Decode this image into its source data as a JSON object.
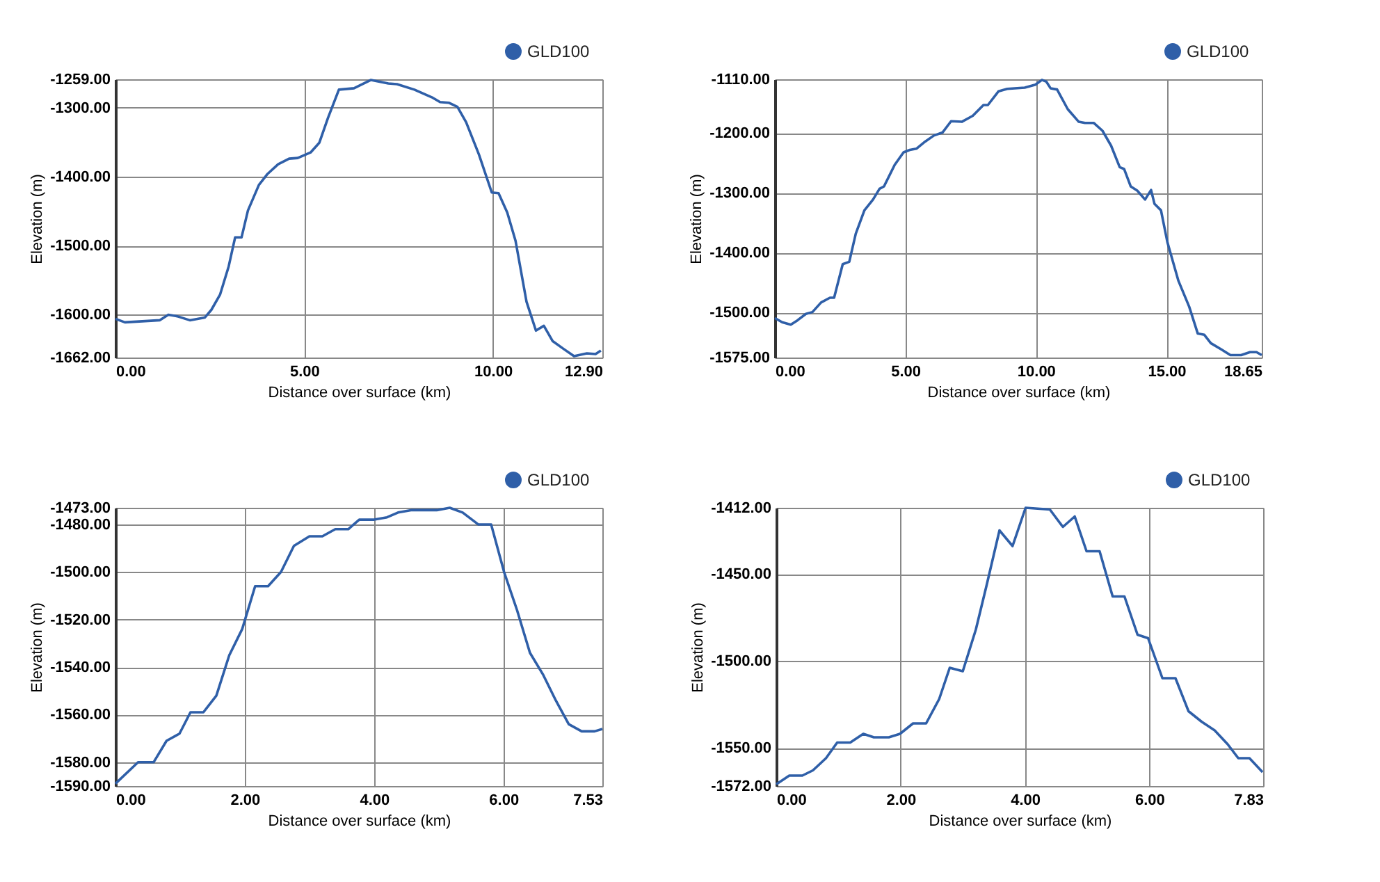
{
  "chart_data": [
    {
      "type": "line",
      "xlabel": "Distance over surface (km)",
      "ylabel": "Elevation (m)",
      "legend": "top right",
      "grid": true,
      "marker": "none",
      "line_style": "solid",
      "xlim": [
        0,
        12.9
      ],
      "ylim": [
        -1662,
        -1259
      ],
      "xticks": [
        {
          "value": 0,
          "label": "0.00"
        },
        {
          "value": 5,
          "label": "5.00"
        },
        {
          "value": 10,
          "label": "10.00"
        },
        {
          "value": 12.9,
          "label": "12.90"
        }
      ],
      "yticks": [
        {
          "value": -1662,
          "label": "-1662.00"
        },
        {
          "value": -1600,
          "label": "-1600.00"
        },
        {
          "value": -1500,
          "label": "-1500.00"
        },
        {
          "value": -1400,
          "label": "-1400.00"
        },
        {
          "value": -1300,
          "label": "-1300.00"
        },
        {
          "value": -1259,
          "label": "-1259.00"
        }
      ],
      "series": [
        {
          "name": "GLD100",
          "color": "#2f5fa8",
          "x": [
            0,
            0.25,
            1.17,
            1.4,
            1.62,
            1.97,
            2.37,
            2.54,
            2.77,
            3.0,
            3.17,
            3.34,
            3.51,
            3.8,
            4.03,
            4.31,
            4.6,
            4.83,
            5.17,
            5.4,
            5.63,
            5.92,
            6.32,
            6.77,
            7.23,
            7.46,
            7.92,
            8.38,
            8.6,
            8.83,
            9.06,
            9.29,
            9.63,
            9.97,
            10.15,
            10.38,
            10.6,
            10.89,
            11.14,
            11.35,
            11.58,
            11.86,
            12.15,
            12.49,
            12.72,
            12.86
          ],
          "values": [
            -1606,
            -1611,
            -1608,
            -1600,
            -1602,
            -1608,
            -1604,
            -1593,
            -1571,
            -1530,
            -1488,
            -1488,
            -1449,
            -1412,
            -1396,
            -1382,
            -1374,
            -1373,
            -1365,
            -1351,
            -1315,
            -1274,
            -1272,
            -1260,
            -1265,
            -1266,
            -1274,
            -1285,
            -1292,
            -1293,
            -1299,
            -1321,
            -1368,
            -1423,
            -1424,
            -1452,
            -1493,
            -1581,
            -1623,
            -1616,
            -1638,
            -1649,
            -1660,
            -1656,
            -1657,
            -1652
          ]
        }
      ]
    },
    {
      "type": "line",
      "xlabel": "Distance over surface (km)",
      "ylabel": "Elevation (m)",
      "legend": "top right",
      "grid": true,
      "marker": "none",
      "line_style": "solid",
      "xlim": [
        0,
        18.65
      ],
      "ylim": [
        -1575,
        -1110
      ],
      "xticks": [
        {
          "value": 0,
          "label": "0.00"
        },
        {
          "value": 5,
          "label": "5.00"
        },
        {
          "value": 10,
          "label": "10.00"
        },
        {
          "value": 15,
          "label": "15.00"
        },
        {
          "value": 18.65,
          "label": "18.65"
        }
      ],
      "yticks": [
        {
          "value": -1575,
          "label": "-1575.00"
        },
        {
          "value": -1500,
          "label": "-1500.00"
        },
        {
          "value": -1400,
          "label": "-1400.00"
        },
        {
          "value": -1300,
          "label": "-1300.00"
        },
        {
          "value": -1200,
          "label": "-1200.00"
        },
        {
          "value": -1110,
          "label": "-1110.00"
        }
      ],
      "series": [
        {
          "name": "GLD100",
          "color": "#2f5fa8",
          "x": [
            0,
            0.28,
            0.61,
            0.86,
            1.19,
            1.44,
            1.77,
            2.11,
            2.27,
            2.6,
            2.85,
            3.1,
            3.43,
            3.76,
            4.01,
            4.18,
            4.59,
            4.93,
            5.17,
            5.42,
            5.76,
            6.09,
            6.42,
            6.75,
            7.16,
            7.58,
            7.99,
            8.16,
            8.57,
            8.9,
            9.57,
            9.98,
            10.23,
            10.4,
            10.56,
            10.81,
            11.22,
            11.64,
            11.88,
            12.22,
            12.55,
            12.88,
            13.21,
            13.38,
            13.63,
            13.88,
            14.18,
            14.41,
            14.54,
            14.79,
            15.04,
            15.46,
            15.87,
            16.2,
            16.45,
            16.7,
            17.12,
            17.45,
            17.86,
            18.2,
            18.45,
            18.65
          ],
          "values": [
            -1509,
            -1516,
            -1520,
            -1513,
            -1502,
            -1499,
            -1483,
            -1475,
            -1475,
            -1419,
            -1415,
            -1368,
            -1329,
            -1311,
            -1293,
            -1289,
            -1253,
            -1232,
            -1228,
            -1226,
            -1214,
            -1204,
            -1199,
            -1180,
            -1181,
            -1171,
            -1153,
            -1153,
            -1130,
            -1126,
            -1124,
            -1119,
            -1111,
            -1114,
            -1125,
            -1127,
            -1160,
            -1181,
            -1183,
            -1183,
            -1196,
            -1221,
            -1257,
            -1260,
            -1289,
            -1296,
            -1311,
            -1295,
            -1318,
            -1329,
            -1383,
            -1447,
            -1490,
            -1535,
            -1537,
            -1551,
            -1562,
            -1571,
            -1571,
            -1566,
            -1566,
            -1571
          ]
        }
      ]
    },
    {
      "type": "line",
      "xlabel": "Distance over surface (km)",
      "ylabel": "Elevation (m)",
      "legend": "top right",
      "grid": true,
      "marker": "none",
      "line_style": "solid",
      "xlim": [
        0,
        7.53
      ],
      "ylim": [
        -1590,
        -1473
      ],
      "xticks": [
        {
          "value": 0,
          "label": "0.00"
        },
        {
          "value": 2,
          "label": "2.00"
        },
        {
          "value": 4,
          "label": "4.00"
        },
        {
          "value": 6,
          "label": "6.00"
        },
        {
          "value": 7.53,
          "label": "7.53"
        }
      ],
      "yticks": [
        {
          "value": -1590,
          "label": "-1590.00"
        },
        {
          "value": -1580,
          "label": "-1580.00"
        },
        {
          "value": -1560,
          "label": "-1560.00"
        },
        {
          "value": -1540,
          "label": "-1540.00"
        },
        {
          "value": -1520,
          "label": "-1520.00"
        },
        {
          "value": -1500,
          "label": "-1500.00"
        },
        {
          "value": -1480,
          "label": "-1480.00"
        },
        {
          "value": -1473,
          "label": "-1473.00"
        }
      ],
      "series": [
        {
          "name": "GLD100",
          "color": "#2f5fa8",
          "x": [
            0,
            0.35,
            0.59,
            0.79,
            0.99,
            1.16,
            1.36,
            1.56,
            1.76,
            1.96,
            2.16,
            2.36,
            2.56,
            2.76,
            3.0,
            3.2,
            3.4,
            3.6,
            3.77,
            4.0,
            4.2,
            4.37,
            4.57,
            4.97,
            5.17,
            5.37,
            5.61,
            5.81,
            6.01,
            6.21,
            6.41,
            6.61,
            6.81,
            7.01,
            7.21,
            7.41,
            7.53
          ],
          "values": [
            -1589,
            -1580,
            -1580,
            -1571,
            -1568,
            -1559,
            -1559,
            -1552,
            -1535,
            -1524,
            -1506,
            -1506,
            -1500,
            -1489,
            -1485,
            -1485,
            -1482,
            -1482,
            -1478,
            -1478,
            -1477,
            -1475,
            -1474,
            -1474,
            -1473,
            -1475,
            -1480,
            -1480,
            -1500,
            -1516,
            -1534,
            -1543,
            -1554,
            -1564,
            -1567,
            -1567,
            -1566
          ]
        }
      ]
    },
    {
      "type": "line",
      "xlabel": "Distance over surface (km)",
      "ylabel": "Elevation (m)",
      "legend": "top right",
      "grid": true,
      "marker": "none",
      "line_style": "solid",
      "xlim": [
        0,
        7.83
      ],
      "ylim": [
        -1572,
        -1412
      ],
      "xticks": [
        {
          "value": 0,
          "label": "0.00"
        },
        {
          "value": 2,
          "label": "2.00"
        },
        {
          "value": 4,
          "label": "4.00"
        },
        {
          "value": 6,
          "label": "6.00"
        },
        {
          "value": 7.83,
          "label": "7.83"
        }
      ],
      "yticks": [
        {
          "value": -1572,
          "label": "-1572.00"
        },
        {
          "value": -1550,
          "label": "-1550.00"
        },
        {
          "value": -1500,
          "label": "-1500.00"
        },
        {
          "value": -1450,
          "label": "-1450.00"
        },
        {
          "value": -1412,
          "label": "-1412.00"
        }
      ],
      "series": [
        {
          "name": "GLD100",
          "color": "#2f5fa8",
          "x": [
            0,
            0.21,
            0.42,
            0.59,
            0.8,
            0.98,
            1.19,
            1.4,
            1.57,
            1.81,
            1.99,
            2.2,
            2.41,
            2.62,
            2.79,
            3.0,
            3.21,
            3.38,
            3.59,
            3.8,
            4.01,
            4.4,
            4.61,
            4.8,
            4.99,
            5.2,
            5.41,
            5.6,
            5.81,
            5.98,
            6.21,
            6.42,
            6.63,
            6.84,
            7.05,
            7.26,
            7.43,
            7.61,
            7.82
          ],
          "values": [
            -1571,
            -1566,
            -1566,
            -1563,
            -1556,
            -1547,
            -1547,
            -1542,
            -1544,
            -1544,
            -1542,
            -1536,
            -1536,
            -1522,
            -1504,
            -1506,
            -1482,
            -1457,
            -1425,
            -1434,
            -1412,
            -1413,
            -1423,
            -1417,
            -1437,
            -1437,
            -1463,
            -1463,
            -1485,
            -1487,
            -1510,
            -1510,
            -1529,
            -1535,
            -1540,
            -1548,
            -1556,
            -1556,
            -1564
          ]
        }
      ]
    }
  ]
}
